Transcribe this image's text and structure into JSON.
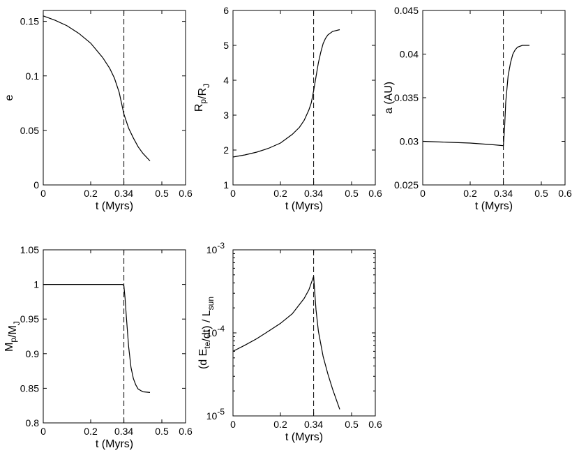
{
  "chart_data": [
    {
      "type": "line",
      "id": "e",
      "xlabel": "t (Myrs)",
      "ylabel_parts": [
        [
          "e",
          ""
        ]
      ],
      "xlim": [
        0,
        0.6
      ],
      "xticks": [
        0,
        0.2,
        0.34,
        0.5,
        0.6
      ],
      "xtick_labels": [
        "0",
        "0.2",
        "0.34",
        "0.5",
        "0.6"
      ],
      "ylim": [
        0,
        0.16
      ],
      "yscale": "linear",
      "yticks": [
        0,
        0.05,
        0.1,
        0.15
      ],
      "ytick_labels": [
        "0",
        "0.05",
        "0.1",
        "0.15"
      ],
      "vline": 0.34,
      "x": [
        0,
        0.05,
        0.1,
        0.15,
        0.2,
        0.25,
        0.28,
        0.3,
        0.32,
        0.34,
        0.36,
        0.38,
        0.4,
        0.42,
        0.45
      ],
      "y": [
        0.155,
        0.151,
        0.146,
        0.139,
        0.13,
        0.117,
        0.107,
        0.098,
        0.085,
        0.065,
        0.052,
        0.043,
        0.035,
        0.029,
        0.022
      ]
    },
    {
      "type": "line",
      "id": "rp",
      "xlabel": "t (Myrs)",
      "ylabel_parts": [
        [
          "R",
          "p"
        ],
        [
          "/R",
          "J"
        ]
      ],
      "xlim": [
        0,
        0.6
      ],
      "xticks": [
        0,
        0.2,
        0.34,
        0.5,
        0.6
      ],
      "xtick_labels": [
        "0",
        "0.2",
        "0.34",
        "0.5",
        "0.6"
      ],
      "ylim": [
        1,
        6
      ],
      "yscale": "linear",
      "yticks": [
        1,
        2,
        3,
        4,
        5,
        6
      ],
      "ytick_labels": [
        "1",
        "2",
        "3",
        "4",
        "5",
        "6"
      ],
      "vline": 0.34,
      "x": [
        0,
        0.05,
        0.1,
        0.15,
        0.2,
        0.25,
        0.28,
        0.3,
        0.32,
        0.33,
        0.34,
        0.35,
        0.36,
        0.37,
        0.38,
        0.39,
        0.4,
        0.42,
        0.45
      ],
      "y": [
        1.8,
        1.86,
        1.94,
        2.05,
        2.2,
        2.45,
        2.65,
        2.85,
        3.15,
        3.35,
        3.7,
        4.1,
        4.5,
        4.8,
        5.05,
        5.2,
        5.3,
        5.4,
        5.45
      ]
    },
    {
      "type": "line",
      "id": "a",
      "xlabel": "t (Myrs)",
      "ylabel_parts": [
        [
          "a (AU)",
          ""
        ]
      ],
      "xlim": [
        0,
        0.6
      ],
      "xticks": [
        0,
        0.2,
        0.34,
        0.5,
        0.6
      ],
      "xtick_labels": [
        "0",
        "0.2",
        "0.34",
        "0.5",
        "0.6"
      ],
      "ylim": [
        0.025,
        0.045
      ],
      "yscale": "linear",
      "yticks": [
        0.025,
        0.03,
        0.035,
        0.04,
        0.045
      ],
      "ytick_labels": [
        "0.025",
        "0.03",
        "0.035",
        "0.04",
        "0.045"
      ],
      "vline": 0.34,
      "x": [
        0,
        0.1,
        0.2,
        0.3,
        0.34,
        0.345,
        0.35,
        0.36,
        0.37,
        0.38,
        0.39,
        0.4,
        0.42,
        0.45
      ],
      "y": [
        0.03,
        0.0299,
        0.0298,
        0.0296,
        0.0295,
        0.0315,
        0.0345,
        0.0375,
        0.039,
        0.04,
        0.0405,
        0.0408,
        0.041,
        0.041
      ]
    },
    {
      "type": "line",
      "id": "mp",
      "xlabel": "t (Myrs)",
      "ylabel_parts": [
        [
          "M",
          "p"
        ],
        [
          "/M",
          "J"
        ]
      ],
      "xlim": [
        0,
        0.6
      ],
      "xticks": [
        0,
        0.2,
        0.34,
        0.5,
        0.6
      ],
      "xtick_labels": [
        "0",
        "0.2",
        "0.34",
        "0.5",
        "0.6"
      ],
      "ylim": [
        0.8,
        1.05
      ],
      "yscale": "linear",
      "yticks": [
        0.8,
        0.85,
        0.9,
        0.95,
        1,
        1.05
      ],
      "ytick_labels": [
        "0.8",
        "0.85",
        "0.9",
        "0.95",
        "1",
        "1.05"
      ],
      "vline": 0.34,
      "x": [
        0,
        0.1,
        0.2,
        0.3,
        0.335,
        0.34,
        0.345,
        0.35,
        0.36,
        0.37,
        0.38,
        0.39,
        0.4,
        0.42,
        0.45
      ],
      "y": [
        1,
        1,
        1,
        1,
        1,
        0.998,
        0.98,
        0.955,
        0.91,
        0.88,
        0.864,
        0.855,
        0.849,
        0.845,
        0.844
      ]
    },
    {
      "type": "line",
      "id": "dedt",
      "xlabel": "t (Myrs)",
      "ylabel_parts": [
        [
          "(d E",
          "te"
        ],
        [
          "/dt) / L",
          "sun"
        ]
      ],
      "xlim": [
        0,
        0.6
      ],
      "xticks": [
        0,
        0.2,
        0.34,
        0.5,
        0.6
      ],
      "xtick_labels": [
        "0",
        "0.2",
        "0.34",
        "0.5",
        "0.6"
      ],
      "ylim": [
        1e-05,
        0.001
      ],
      "yscale": "log",
      "yticks": [
        1e-05,
        0.0001,
        0.001
      ],
      "ytick_base": "10",
      "ytick_exps": [
        "-5",
        "-4",
        "-3"
      ],
      "vline": 0.34,
      "x": [
        0,
        0.05,
        0.1,
        0.15,
        0.2,
        0.25,
        0.3,
        0.32,
        0.34,
        0.35,
        0.36,
        0.38,
        0.4,
        0.42,
        0.45
      ],
      "y": [
        6e-05,
        7.1e-05,
        8.5e-05,
        0.000105,
        0.00013,
        0.00017,
        0.00026,
        0.00033,
        0.00048,
        0.00019,
        0.000105,
        5.2e-05,
        3.2e-05,
        2.1e-05,
        1.2e-05
      ]
    }
  ]
}
